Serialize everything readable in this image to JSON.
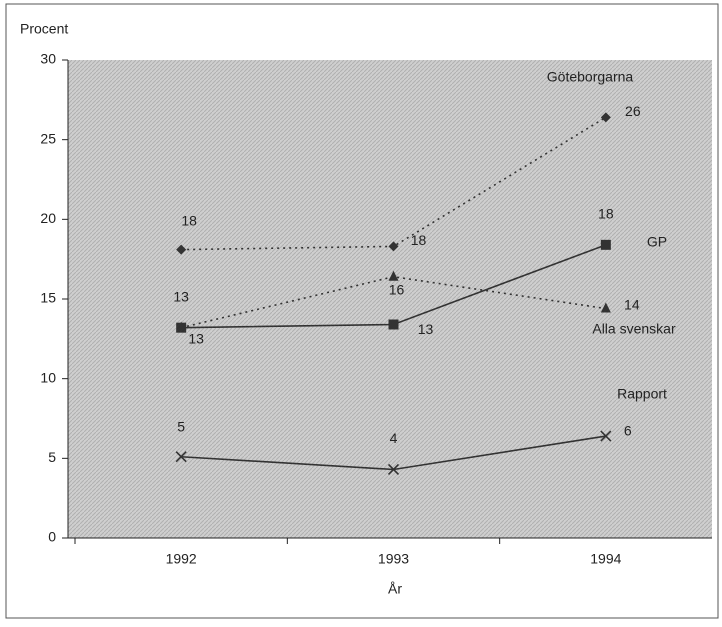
{
  "chart_data": {
    "type": "line",
    "y_label": "Procent",
    "x_label": "År",
    "categories": [
      "1992",
      "1993",
      "1994"
    ],
    "ylim": [
      0,
      30
    ],
    "yticks": [
      0,
      5,
      10,
      15,
      20,
      25,
      30
    ],
    "series": [
      {
        "name": "Göteborgarna",
        "color": "#333333",
        "dashed": true,
        "marker": "diamond",
        "values": [
          18.1,
          18.3,
          26.4
        ],
        "value_labels": [
          "18",
          "18",
          "26"
        ]
      },
      {
        "name": "GP",
        "color": "#333333",
        "dashed": false,
        "marker": "square",
        "values": [
          13.2,
          13.4,
          18.4
        ],
        "value_labels": [
          "13",
          "13",
          "18"
        ]
      },
      {
        "name": "Alla svenskar",
        "color": "#333333",
        "dashed": true,
        "marker": "triangle",
        "values": [
          13.2,
          16.4,
          14.4
        ],
        "value_labels": [
          "13",
          "16",
          "14"
        ]
      },
      {
        "name": "Rapport",
        "color": "#333333",
        "dashed": false,
        "marker": "x",
        "values": [
          5.1,
          4.3,
          6.4
        ],
        "value_labels": [
          "5",
          "4",
          "6"
        ]
      }
    ]
  }
}
